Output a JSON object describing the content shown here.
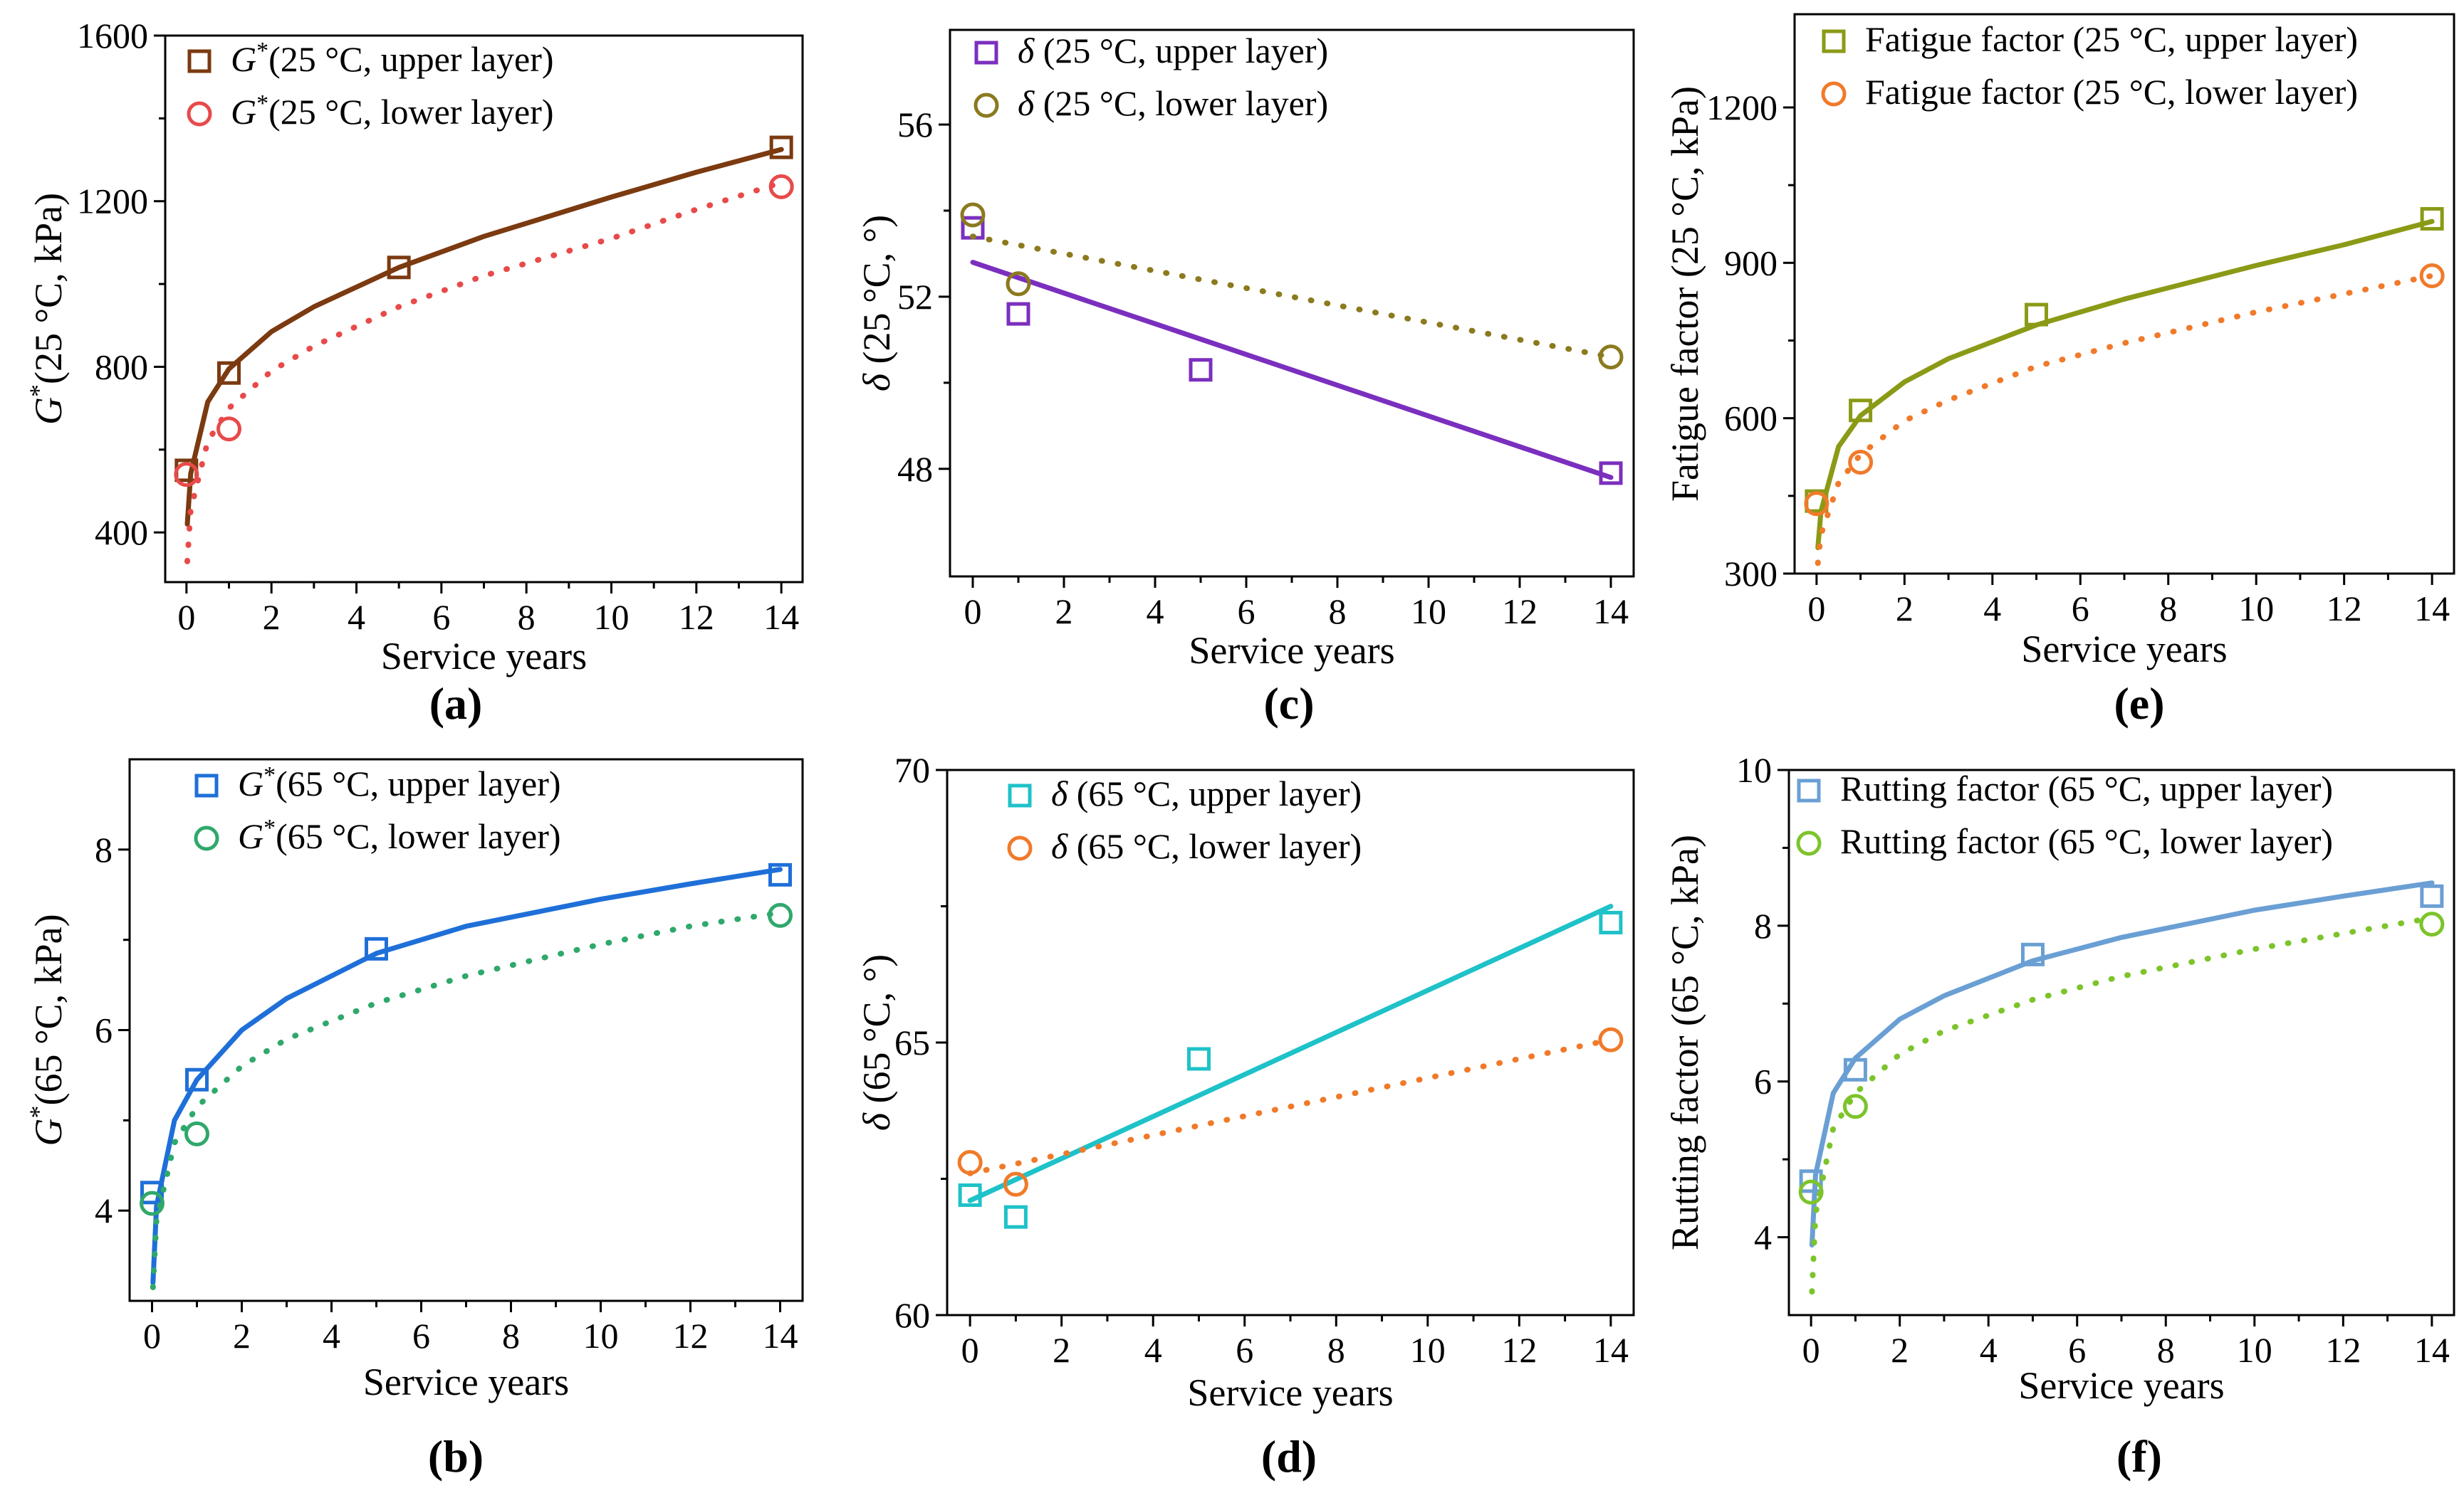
{
  "chart_data": [
    {
      "id": "a",
      "type": "scatter",
      "panel_label": "(a)",
      "xlabel": "Service years",
      "ylabel": "G*(25 °C, kPa)",
      "xlim": [
        -0.5,
        14.5
      ],
      "ylim": [
        280,
        1600
      ],
      "xticks": [
        0,
        2,
        4,
        6,
        8,
        10,
        12,
        14
      ],
      "yticks": [
        400,
        800,
        1200,
        1600
      ],
      "series": [
        {
          "name": "G*(25 °C, upper layer)",
          "marker": "square",
          "color": "#7B3A10",
          "line": "solid",
          "x": [
            0,
            1,
            5,
            14
          ],
          "y": [
            550,
            785,
            1040,
            1330
          ],
          "fit": {
            "type": "power",
            "points": [
              [
                0.02,
                420
              ],
              [
                0.1,
                542
              ],
              [
                0.5,
                715
              ],
              [
                1,
                795
              ],
              [
                2,
                885
              ],
              [
                3,
                945
              ],
              [
                5,
                1040
              ],
              [
                7,
                1115
              ],
              [
                10,
                1210
              ],
              [
                12,
                1270
              ],
              [
                14,
                1325
              ]
            ]
          }
        },
        {
          "name": "G*(25 °C, lower layer)",
          "marker": "circle",
          "color": "#E84A4A",
          "line": "dotted",
          "x": [
            0,
            1,
            14
          ],
          "y": [
            540,
            650,
            1235
          ],
          "fit": {
            "type": "power",
            "points": [
              [
                0.02,
                330
              ],
              [
                0.1,
                455
              ],
              [
                0.5,
                620
              ],
              [
                1,
                700
              ],
              [
                2,
                790
              ],
              [
                3,
                850
              ],
              [
                5,
                945
              ],
              [
                7,
                1020
              ],
              [
                10,
                1110
              ],
              [
                12,
                1180
              ],
              [
                14,
                1245
              ]
            ]
          }
        }
      ]
    },
    {
      "id": "c",
      "type": "scatter",
      "panel_label": "(c)",
      "xlabel": "Service years",
      "ylabel": "δ (25 °C, °)",
      "xlim": [
        -0.5,
        14.5
      ],
      "ylim": [
        45.5,
        58.2
      ],
      "xticks": [
        0,
        2,
        4,
        6,
        8,
        10,
        12,
        14
      ],
      "yticks": [
        48,
        52,
        56
      ],
      "series": [
        {
          "name": "δ (25 °C, upper layer)",
          "marker": "square",
          "color": "#7B2FBE",
          "line": "solid",
          "x": [
            0,
            1,
            5,
            14
          ],
          "y": [
            53.6,
            51.6,
            50.3,
            47.9
          ],
          "fit": {
            "type": "linear",
            "points": [
              [
                0,
                52.8
              ],
              [
                14,
                47.8
              ]
            ]
          }
        },
        {
          "name": "δ (25 °C, lower layer)",
          "marker": "circle",
          "color": "#8B7A1E",
          "line": "dotted",
          "x": [
            0,
            1,
            14
          ],
          "y": [
            53.9,
            52.3,
            50.6
          ],
          "fit": {
            "type": "linear",
            "points": [
              [
                0,
                53.4
              ],
              [
                14,
                50.6
              ]
            ]
          }
        }
      ]
    },
    {
      "id": "e",
      "type": "scatter",
      "panel_label": "(e)",
      "xlabel": "Service years",
      "ylabel": "Fatigue factor (25 °C, kPa)",
      "xlim": [
        -0.5,
        14.5
      ],
      "ylim": [
        300,
        1380
      ],
      "xticks": [
        0,
        2,
        4,
        6,
        8,
        10,
        12,
        14
      ],
      "yticks": [
        300,
        600,
        900,
        1200
      ],
      "series": [
        {
          "name": "Fatigue factor (25 °C, upper layer)",
          "marker": "square",
          "color": "#8B9A16",
          "line": "solid",
          "x": [
            0,
            1,
            5,
            14
          ],
          "y": [
            440,
            615,
            800,
            985
          ],
          "fit": {
            "type": "power",
            "points": [
              [
                0.03,
                350
              ],
              [
                0.1,
                420
              ],
              [
                0.5,
                545
              ],
              [
                1,
                605
              ],
              [
                2,
                670
              ],
              [
                3,
                715
              ],
              [
                5,
                780
              ],
              [
                7,
                830
              ],
              [
                10,
                895
              ],
              [
                12,
                935
              ],
              [
                14,
                980
              ]
            ]
          }
        },
        {
          "name": "Fatigue factor (25 °C, lower layer)",
          "marker": "circle",
          "color": "#F07A2A",
          "line": "dotted",
          "x": [
            0,
            1,
            14
          ],
          "y": [
            435,
            515,
            875
          ],
          "fit": {
            "type": "power",
            "points": [
              [
                0.03,
                320
              ],
              [
                0.1,
                375
              ],
              [
                0.5,
                475
              ],
              [
                1,
                530
              ],
              [
                2,
                595
              ],
              [
                3,
                635
              ],
              [
                5,
                700
              ],
              [
                7,
                745
              ],
              [
                10,
                805
              ],
              [
                12,
                840
              ],
              [
                14,
                875
              ]
            ]
          }
        }
      ]
    },
    {
      "id": "b",
      "type": "scatter",
      "panel_label": "(b)",
      "xlabel": "Service years",
      "ylabel": "G*(65 °C, kPa)",
      "xlim": [
        -0.5,
        14.5
      ],
      "ylim": [
        3.0,
        9.0
      ],
      "xticks": [
        0,
        2,
        4,
        6,
        8,
        10,
        12,
        14
      ],
      "yticks": [
        4,
        6,
        8
      ],
      "series": [
        {
          "name": "G*(65 °C, upper layer)",
          "marker": "square",
          "color": "#1F6FD8",
          "line": "solid",
          "x": [
            0,
            1,
            5,
            14
          ],
          "y": [
            4.2,
            5.45,
            6.9,
            7.72
          ],
          "fit": {
            "type": "power",
            "points": [
              [
                0.02,
                3.2
              ],
              [
                0.1,
                4.05
              ],
              [
                0.5,
                5.0
              ],
              [
                1,
                5.45
              ],
              [
                2,
                6.0
              ],
              [
                3,
                6.35
              ],
              [
                5,
                6.85
              ],
              [
                7,
                7.15
              ],
              [
                10,
                7.45
              ],
              [
                12,
                7.62
              ],
              [
                14,
                7.78
              ]
            ]
          }
        },
        {
          "name": "G*(65 °C, lower layer)",
          "marker": "circle",
          "color": "#2FA86B",
          "line": "dotted",
          "x": [
            0,
            1,
            14
          ],
          "y": [
            4.08,
            4.85,
            7.27
          ],
          "fit": {
            "type": "power",
            "points": [
              [
                0.02,
                3.15
              ],
              [
                0.1,
                3.9
              ],
              [
                0.5,
                4.75
              ],
              [
                1,
                5.15
              ],
              [
                2,
                5.6
              ],
              [
                3,
                5.9
              ],
              [
                5,
                6.3
              ],
              [
                7,
                6.6
              ],
              [
                10,
                6.95
              ],
              [
                12,
                7.15
              ],
              [
                14,
                7.3
              ]
            ]
          }
        }
      ]
    },
    {
      "id": "d",
      "type": "scatter",
      "panel_label": "(d)",
      "xlabel": "Service years",
      "ylabel": "δ (65 °C, °)",
      "xlim": [
        -0.5,
        14.5
      ],
      "ylim": [
        60,
        70
      ],
      "xticks": [
        0,
        2,
        4,
        6,
        8,
        10,
        12,
        14
      ],
      "yticks": [
        60,
        65,
        70
      ],
      "series": [
        {
          "name": "δ (65 °C, upper layer)",
          "marker": "square",
          "color": "#1EC2C8",
          "line": "solid",
          "x": [
            0,
            1,
            5,
            14
          ],
          "y": [
            62.2,
            61.8,
            64.7,
            67.2
          ],
          "fit": {
            "type": "linear",
            "points": [
              [
                0,
                62.1
              ],
              [
                14,
                67.5
              ]
            ]
          }
        },
        {
          "name": "δ (65 °C, lower layer)",
          "marker": "circle",
          "color": "#F07A2A",
          "line": "dotted",
          "x": [
            0,
            1,
            14
          ],
          "y": [
            62.8,
            62.4,
            65.05
          ],
          "fit": {
            "type": "linear",
            "points": [
              [
                0,
                62.6
              ],
              [
                14,
                65.05
              ]
            ]
          }
        }
      ]
    },
    {
      "id": "f",
      "type": "scatter",
      "panel_label": "(f)",
      "xlabel": "Service years",
      "ylabel": "Rutting factor (65 °C, kPa)",
      "xlim": [
        -0.5,
        14.5
      ],
      "ylim": [
        3.0,
        10.0
      ],
      "xticks": [
        0,
        2,
        4,
        6,
        8,
        10,
        12,
        14
      ],
      "yticks": [
        4,
        6,
        8,
        10
      ],
      "series": [
        {
          "name": "Rutting factor (65 °C, upper layer)",
          "marker": "square",
          "color": "#6A9FD4",
          "line": "solid",
          "x": [
            0,
            1,
            5,
            14
          ],
          "y": [
            4.72,
            6.15,
            7.63,
            8.38
          ],
          "fit": {
            "type": "power",
            "points": [
              [
                0.02,
                3.9
              ],
              [
                0.1,
                4.8
              ],
              [
                0.5,
                5.85
              ],
              [
                1,
                6.3
              ],
              [
                2,
                6.8
              ],
              [
                3,
                7.1
              ],
              [
                5,
                7.55
              ],
              [
                7,
                7.85
              ],
              [
                10,
                8.2
              ],
              [
                12,
                8.38
              ],
              [
                14,
                8.55
              ]
            ]
          }
        },
        {
          "name": "Rutting factor (65 °C, lower layer)",
          "marker": "circle",
          "color": "#7CC42A",
          "line": "dotted",
          "x": [
            0,
            1,
            14
          ],
          "y": [
            4.58,
            5.68,
            8.02
          ],
          "fit": {
            "type": "power",
            "points": [
              [
                0.02,
                3.3
              ],
              [
                0.1,
                4.3
              ],
              [
                0.5,
                5.4
              ],
              [
                1,
                5.85
              ],
              [
                2,
                6.35
              ],
              [
                3,
                6.65
              ],
              [
                5,
                7.05
              ],
              [
                7,
                7.35
              ],
              [
                10,
                7.7
              ],
              [
                12,
                7.9
              ],
              [
                14,
                8.1
              ]
            ]
          }
        }
      ]
    }
  ]
}
